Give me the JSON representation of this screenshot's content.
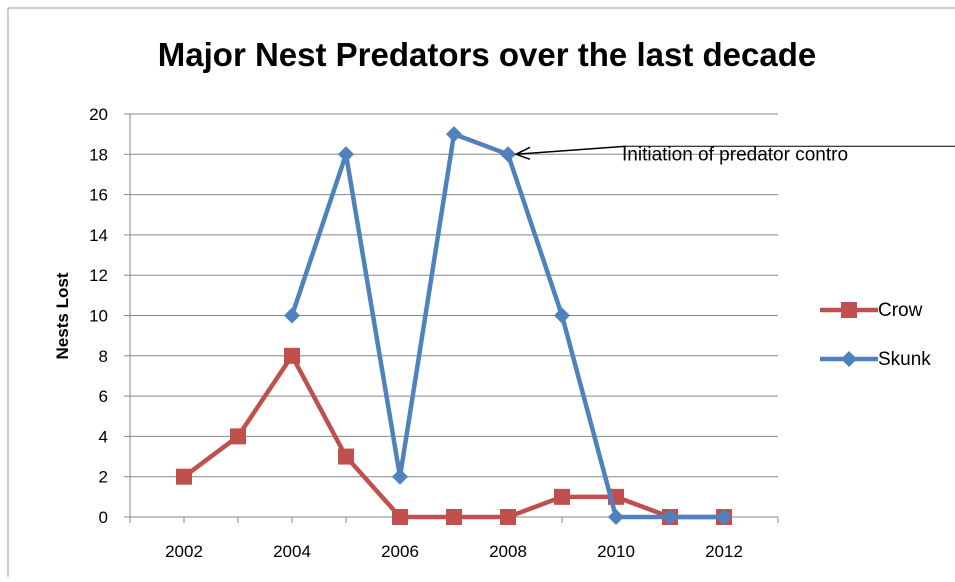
{
  "chart_data": {
    "type": "line",
    "title": "Major Nest Predators over the last decade",
    "xlabel": "",
    "ylabel": "Nests Lost",
    "x": [
      2002,
      2003,
      2004,
      2005,
      2006,
      2007,
      2008,
      2009,
      2010,
      2011,
      2012
    ],
    "xticks": [
      2002,
      2004,
      2006,
      2008,
      2010,
      2012
    ],
    "xlim": [
      2001,
      2013
    ],
    "ylim": [
      0,
      20
    ],
    "yticks": [
      0,
      2,
      4,
      6,
      8,
      10,
      12,
      14,
      16,
      18,
      20
    ],
    "grid": true,
    "legend": "right",
    "series": [
      {
        "name": "Crow",
        "color": "#c0504d",
        "marker": "square",
        "values": [
          2,
          4,
          8,
          3,
          0,
          0,
          0,
          1,
          1,
          0,
          0
        ]
      },
      {
        "name": "Skunk",
        "color": "#4f81bd",
        "marker": "diamond",
        "values": [
          null,
          null,
          10,
          18,
          2,
          19,
          18,
          10,
          0,
          0,
          0
        ]
      }
    ],
    "annotations": [
      {
        "text": "Initiation of predator contro",
        "x": 2008,
        "y": 18
      }
    ]
  }
}
